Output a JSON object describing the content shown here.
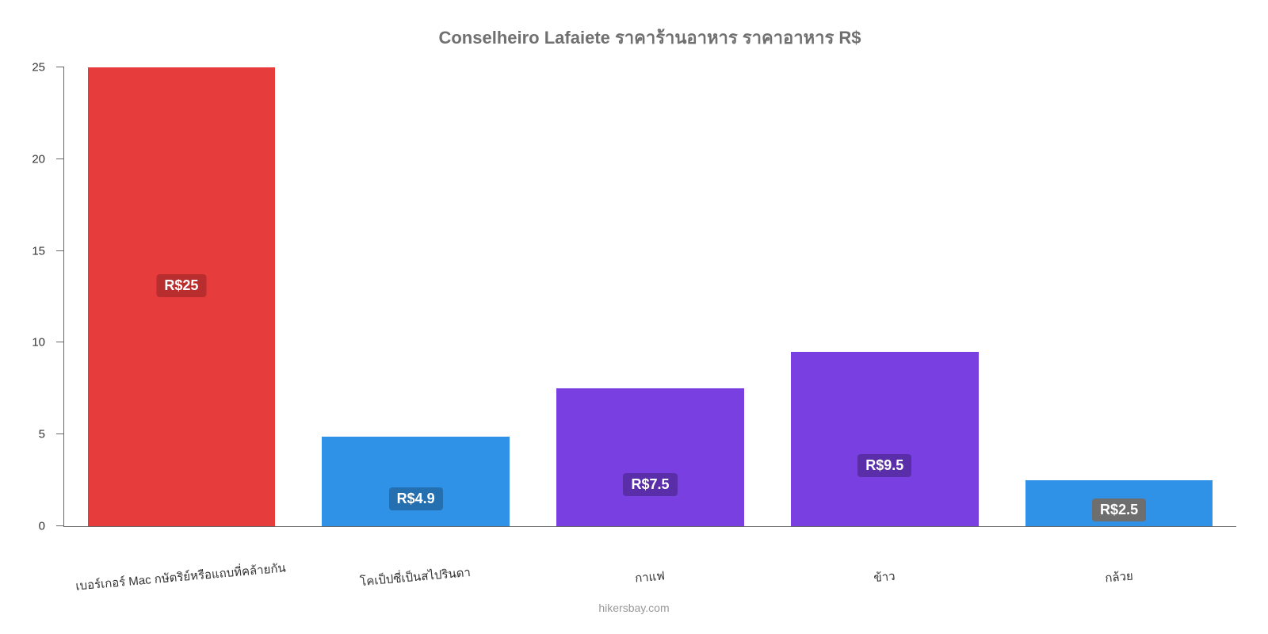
{
  "chart": {
    "type": "bar",
    "title": "Conselheiro Lafaiete ราคาร้านอาหาร ราคาอาหาร R$",
    "title_color": "#707070",
    "title_fontsize": 22,
    "attribution": "hikersbay.com",
    "attribution_color": "#999999",
    "background_color": "#ffffff",
    "axis_color": "#666666",
    "ylim": [
      0,
      25
    ],
    "yticks": [
      0,
      5,
      10,
      15,
      20,
      25
    ],
    "ytick_labels": [
      "0",
      "5",
      "10",
      "15",
      "20",
      "25"
    ],
    "label_fontsize": 15,
    "bar_width_pct": 80,
    "categories": [
      "เบอร์เกอร์ Mac กษัตริย์หรือแถบที่คล้ายกัน",
      "โคเป็ปซี่เป็นสไปรินดา",
      "กาแฟ",
      "ข้าว",
      "กล้วย"
    ],
    "values": [
      25,
      4.9,
      7.5,
      9.5,
      2.5
    ],
    "value_labels": [
      "R$25",
      "R$4.9",
      "R$7.5",
      "R$9.5",
      "R$2.5"
    ],
    "bar_colors": [
      "#e73c3c",
      "#2f92e6",
      "#7a3fe0",
      "#7a3fe0",
      "#2f92e6"
    ],
    "badge_colors": [
      "#b82e2e",
      "#236fb0",
      "#5a2ea8",
      "#5a2ea8",
      "#6e6e6e"
    ],
    "value_label_fontsize": 18,
    "value_label_color": "#ffffff",
    "label_offsets_pct": [
      50,
      18,
      22,
      28,
      10
    ]
  }
}
